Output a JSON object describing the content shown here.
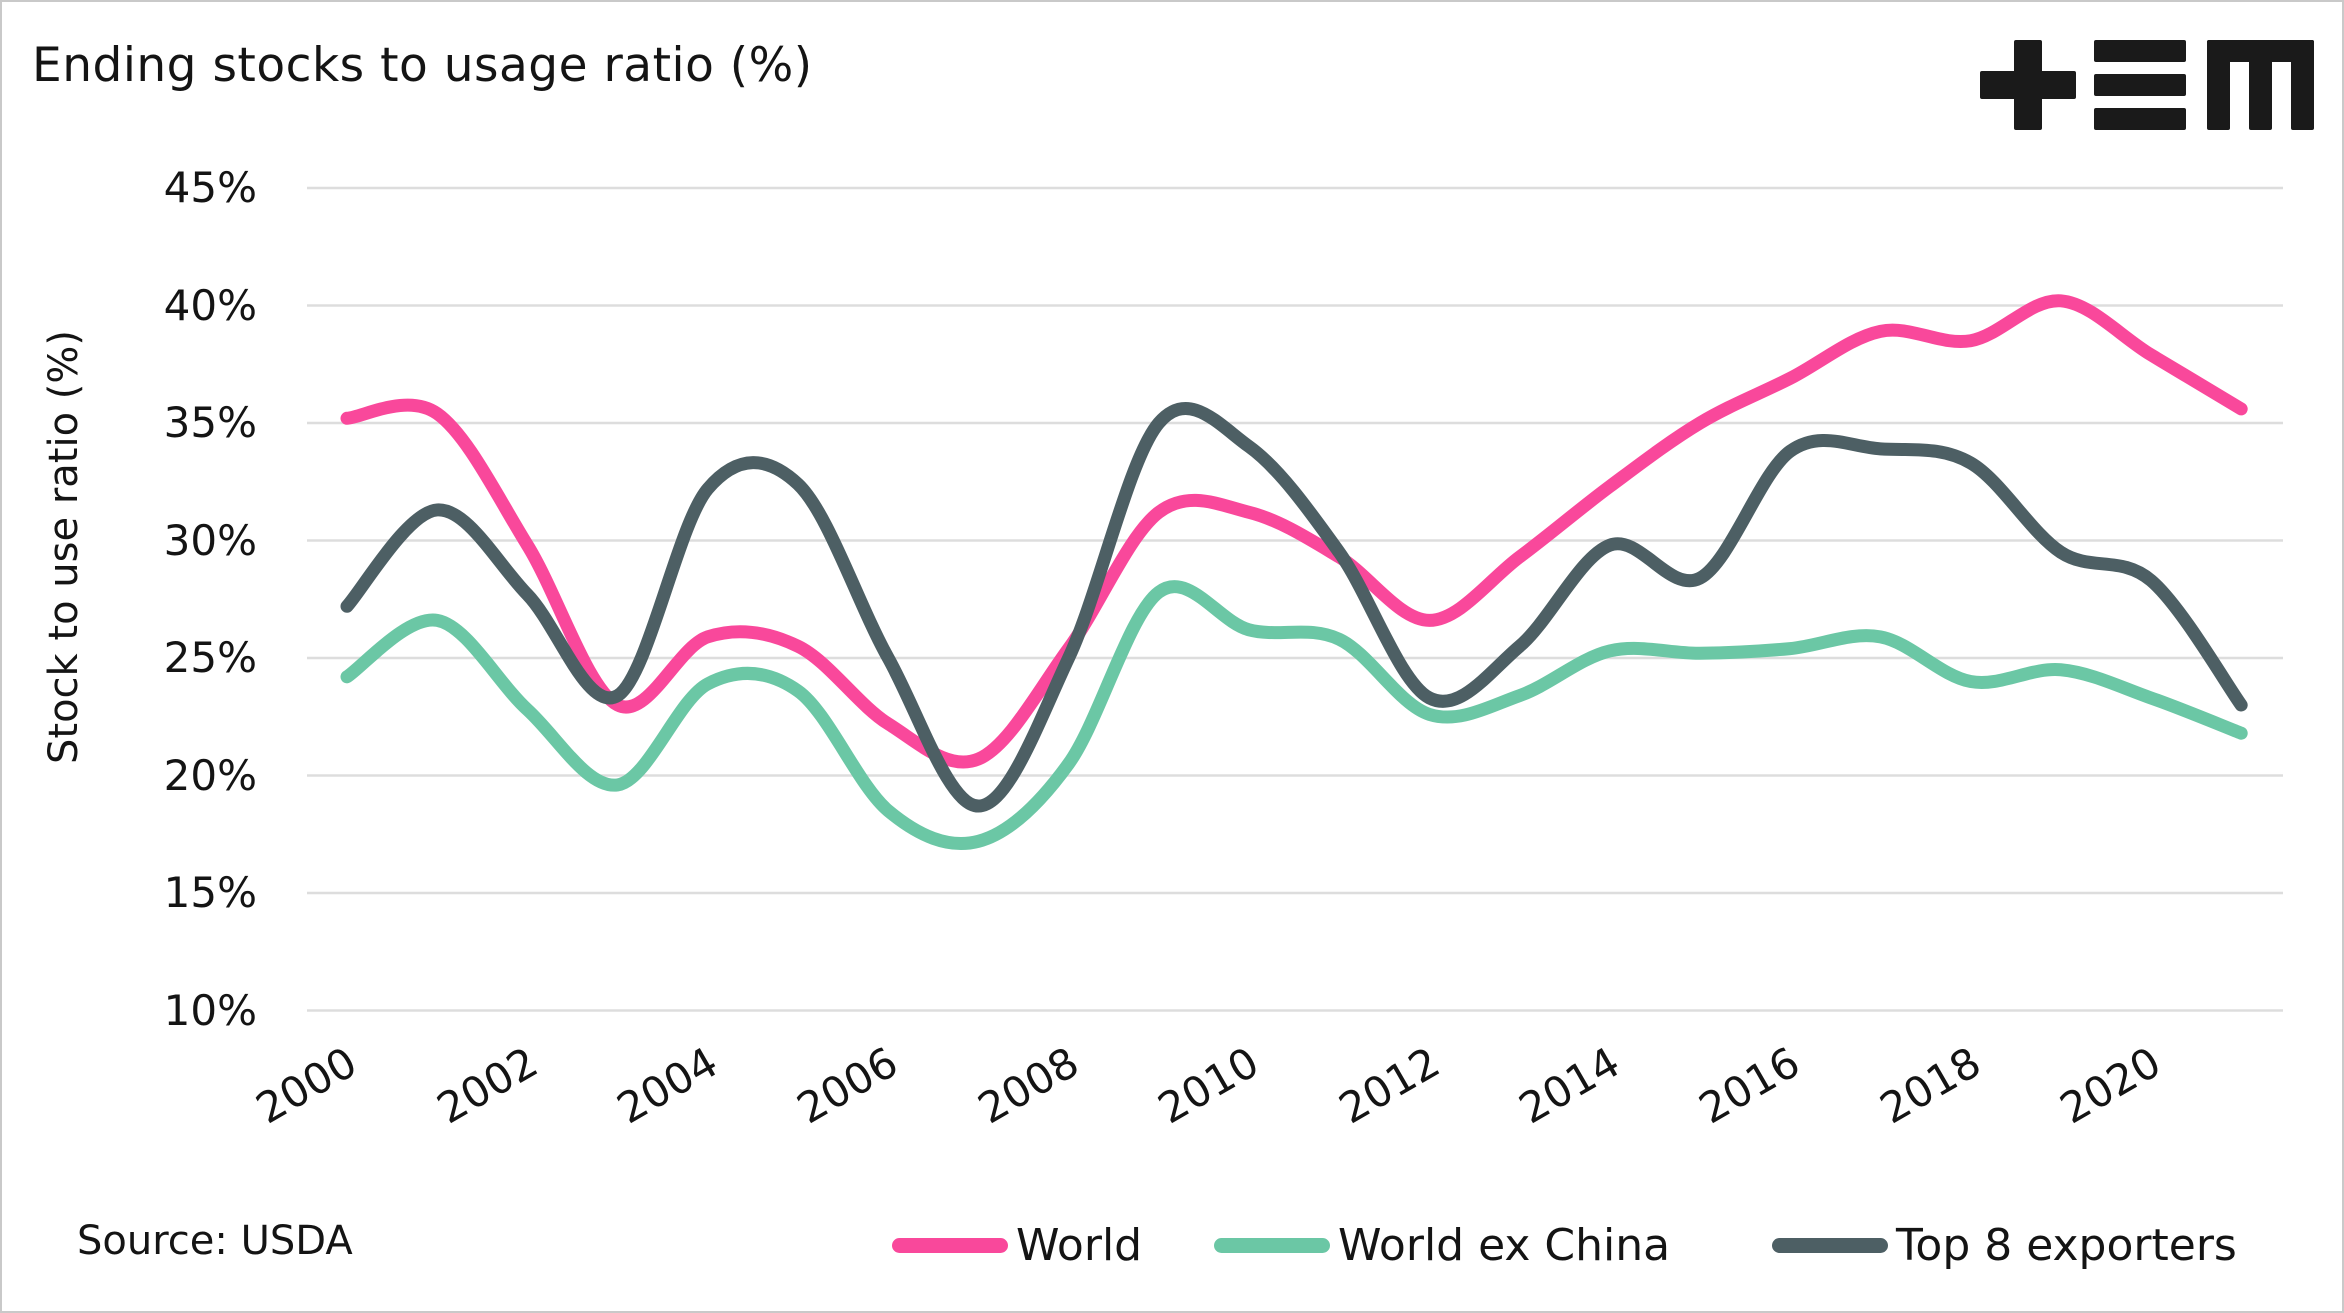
{
  "header": {
    "title": "Ending stocks to usage ratio (%)",
    "logo": "plus-equals-m-logo"
  },
  "y_axis": {
    "title": "Stock to use ratio (%)",
    "ticks": [
      "45%",
      "40%",
      "35%",
      "30%",
      "25%",
      "20%",
      "15%",
      "10%"
    ],
    "tick_values": [
      45,
      40,
      35,
      30,
      25,
      20,
      15,
      10
    ]
  },
  "x_axis": {
    "ticks": [
      "2000",
      "2002",
      "2004",
      "2006",
      "2008",
      "2010",
      "2012",
      "2014",
      "2016",
      "2018",
      "2020"
    ],
    "tick_values": [
      2000,
      2002,
      2004,
      2006,
      2008,
      2010,
      2012,
      2014,
      2016,
      2018,
      2020
    ]
  },
  "source": "Source: USDA",
  "colors": {
    "world": "#F9489B",
    "world_ex_china": "#6BC7A5",
    "top8_exporters": "#4D5F64",
    "grid": "#DDDDDD",
    "text": "#141414",
    "logo": "#1A1A1A"
  },
  "chart_data": {
    "type": "line",
    "title": "Ending stocks to usage ratio (%)",
    "xlabel": "",
    "ylabel": "Stock to use ratio (%)",
    "ylim": [
      10,
      45
    ],
    "xlim": [
      2000,
      2021
    ],
    "grid": "horizontal",
    "legend_position": "bottom",
    "x": [
      2000,
      2001,
      2002,
      2003,
      2004,
      2005,
      2006,
      2007,
      2008,
      2009,
      2010,
      2011,
      2012,
      2013,
      2014,
      2015,
      2016,
      2017,
      2018,
      2019,
      2020,
      2021
    ],
    "series": [
      {
        "name": "World",
        "color": "#F9489B",
        "values": [
          35.2,
          35.4,
          29.8,
          23.0,
          25.9,
          25.5,
          22.2,
          20.7,
          25.4,
          31.2,
          31.2,
          29.3,
          26.6,
          29.3,
          32.3,
          35.0,
          36.9,
          38.9,
          38.5,
          40.2,
          37.9,
          35.6
        ]
      },
      {
        "name": "World ex China",
        "color": "#6BC7A5",
        "values": [
          24.2,
          26.6,
          22.8,
          19.6,
          23.9,
          23.6,
          18.5,
          17.2,
          20.5,
          27.8,
          26.2,
          25.8,
          22.6,
          23.4,
          25.3,
          25.2,
          25.4,
          25.9,
          24.0,
          24.5,
          23.3,
          21.8
        ]
      },
      {
        "name": "Top 8 exporters",
        "color": "#4D5F64",
        "values": [
          27.2,
          31.3,
          27.7,
          23.4,
          32.2,
          32.4,
          25.0,
          18.7,
          25.0,
          35.0,
          34.0,
          29.5,
          23.3,
          25.5,
          29.8,
          28.4,
          33.8,
          33.9,
          33.3,
          29.5,
          28.3,
          23.0
        ]
      }
    ]
  }
}
